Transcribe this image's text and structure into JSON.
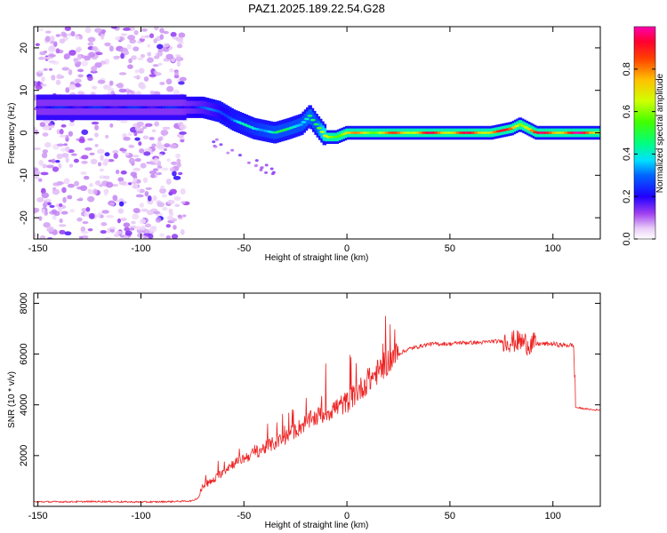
{
  "title": "PAZ1.2025.189.22.54.G28",
  "chart_data": [
    {
      "type": "heatmap",
      "xlabel": "Height of straight line (km)",
      "ylabel": "Frequency (Hz)",
      "xlim": [
        -152,
        123
      ],
      "ylim": [
        -25,
        25
      ],
      "xticks": [
        -150,
        -100,
        -50,
        0,
        50,
        100
      ],
      "yticks": [
        -20,
        -10,
        0,
        10,
        20
      ],
      "xtick_labels": [
        "-150",
        "-100",
        "-50",
        "0",
        "50",
        "100"
      ],
      "ytick_labels": [
        "-20",
        "-10",
        "0",
        "10",
        "20"
      ],
      "colorbar": {
        "label": "Normalized spectral amplitude",
        "range": [
          0,
          1
        ],
        "ticks": [
          0.0,
          0.2,
          0.4,
          0.6,
          0.8
        ],
        "tick_labels": [
          "0.0",
          "0.2",
          "0.4",
          "0.6",
          "0.8"
        ]
      },
      "ridge": {
        "x": [
          -150,
          -140,
          -130,
          -120,
          -110,
          -100,
          -90,
          -80,
          -70,
          -62,
          -55,
          -45,
          -35,
          -28,
          -22,
          -18,
          -15,
          -10,
          -5,
          0,
          10,
          20,
          30,
          40,
          50,
          60,
          70,
          80,
          84,
          88,
          92,
          100,
          110,
          123
        ],
        "y": [
          6,
          6,
          6,
          6,
          6,
          6,
          6,
          6,
          6,
          5,
          3,
          1,
          0,
          1,
          2,
          4,
          2,
          -1,
          -1,
          0,
          0,
          0,
          0,
          0,
          0,
          0,
          0,
          1,
          2,
          1,
          0,
          0,
          0,
          0
        ],
        "amplitude": [
          0.25,
          0.25,
          0.25,
          0.25,
          0.25,
          0.25,
          0.25,
          0.25,
          0.3,
          0.35,
          0.4,
          0.45,
          0.5,
          0.5,
          0.5,
          0.55,
          0.5,
          0.75,
          0.8,
          0.8,
          0.8,
          0.85,
          0.9,
          0.95,
          0.95,
          0.95,
          0.95,
          0.9,
          0.85,
          0.9,
          0.95,
          1.0,
          1.0,
          1.0
        ]
      },
      "noise_region_xlim": [
        -150,
        -78
      ]
    },
    {
      "type": "line",
      "xlabel": "Height of straight line (km)",
      "ylabel": "SNR (10 * v/v)",
      "xlim": [
        -152,
        123
      ],
      "ylim": [
        0,
        8400
      ],
      "xticks": [
        -150,
        -100,
        -50,
        0,
        50,
        100
      ],
      "yticks": [
        2000,
        4000,
        6000,
        8000
      ],
      "xtick_labels": [
        "-150",
        "-100",
        "-50",
        "0",
        "50",
        "100"
      ],
      "ytick_labels": [
        "2000",
        "4000",
        "6000",
        "8000"
      ],
      "series": [
        {
          "color": "#ee2222",
          "x": [
            -152,
            -140,
            -120,
            -100,
            -90,
            -80,
            -75,
            -72,
            -70,
            -65,
            -60,
            -55,
            -50,
            -45,
            -40,
            -35,
            -30,
            -25,
            -20,
            -15,
            -10,
            -5,
            0,
            5,
            10,
            15,
            20,
            25,
            30,
            35,
            40,
            45,
            50,
            55,
            60,
            65,
            70,
            75,
            80,
            84,
            88,
            92,
            96,
            100,
            104,
            110,
            111,
            115,
            120,
            123
          ],
          "y": [
            180,
            180,
            190,
            170,
            180,
            200,
            220,
            350,
            800,
            1000,
            1400,
            1700,
            1900,
            2100,
            2300,
            2500,
            2700,
            3000,
            3300,
            3500,
            3700,
            3900,
            4100,
            4500,
            4900,
            5300,
            5700,
            6000,
            6200,
            6300,
            6400,
            6400,
            6400,
            6450,
            6450,
            6450,
            6500,
            6500,
            6500,
            6500,
            6400,
            6400,
            6400,
            6400,
            6350,
            6350,
            3900,
            3850,
            3800,
            3800
          ]
        }
      ]
    }
  ]
}
